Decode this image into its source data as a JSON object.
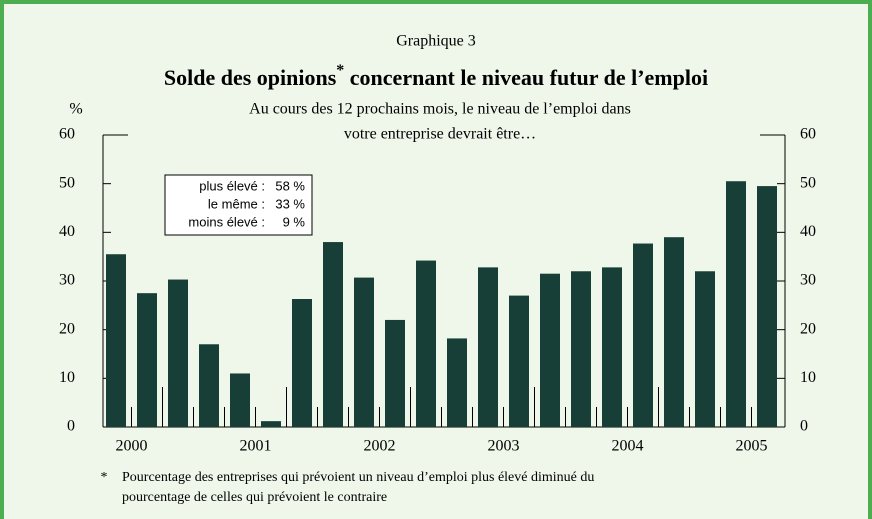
{
  "chart_data": {
    "type": "bar",
    "header": "Graphique 3",
    "title": [
      "Solde des opinions",
      "*",
      " concernant le niveau futur de l’emploi"
    ],
    "subtitle": [
      "Au cours des 12 prochains mois, le niveau de l’emploi dans",
      "votre entreprise devrait être…"
    ],
    "ylabel": "%",
    "legend_box": [
      [
        "plus élevé :",
        "58 %"
      ],
      [
        "le même :",
        "33 %"
      ],
      [
        "moins élevé :",
        "9 %"
      ]
    ],
    "categories": [
      "2000",
      null,
      null,
      null,
      "2001",
      null,
      null,
      null,
      "2002",
      null,
      null,
      null,
      "2003",
      null,
      null,
      null,
      "2004",
      null,
      null,
      null,
      "2005",
      null
    ],
    "values": [
      35.5,
      27.5,
      30.3,
      17,
      11,
      1.2,
      26.3,
      38,
      30.7,
      22,
      34.2,
      18.2,
      32.8,
      27,
      31.5,
      32,
      32.8,
      37.7,
      39,
      32,
      50.5,
      49.5
    ],
    "color": "#173f37",
    "ylim": [
      0,
      60
    ],
    "yticks": [
      0,
      10,
      20,
      30,
      40,
      50,
      60
    ],
    "footnote": [
      "*",
      "Pourcentage des entreprises qui prévoient un niveau d’emploi plus élevé diminué du",
      "pourcentage de celles qui prévoient le contraire"
    ]
  }
}
